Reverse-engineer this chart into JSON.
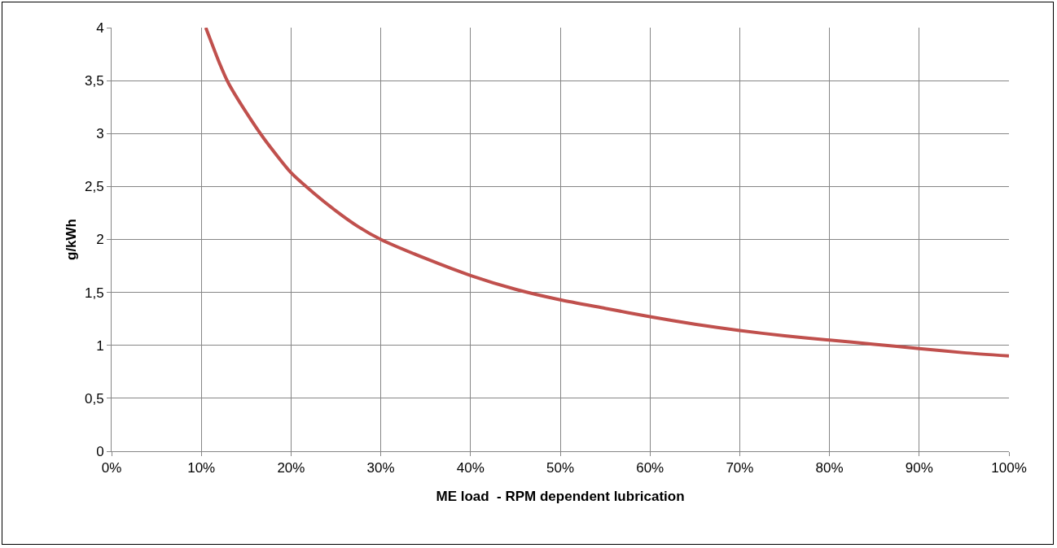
{
  "chart_data": {
    "type": "line",
    "xlabel": "ME load  - RPM dependent lubrication",
    "ylabel": "g/kWh",
    "x": [
      10.5,
      12,
      13,
      15,
      17,
      20,
      22.5,
      25,
      27.5,
      30,
      35,
      40,
      45,
      50,
      55,
      60,
      65,
      70,
      75,
      80,
      85,
      90,
      95,
      100
    ],
    "series": [
      {
        "color": "#c0504d",
        "values": [
          4.0,
          3.67,
          3.48,
          3.2,
          2.95,
          2.63,
          2.44,
          2.27,
          2.12,
          2.0,
          1.82,
          1.66,
          1.53,
          1.43,
          1.35,
          1.27,
          1.2,
          1.14,
          1.09,
          1.05,
          1.01,
          0.97,
          0.93,
          0.9
        ]
      }
    ],
    "xlim": [
      0,
      100
    ],
    "xticks": [
      {
        "value": 0,
        "label": "0%"
      },
      {
        "value": 10,
        "label": "10%"
      },
      {
        "value": 20,
        "label": "20%"
      },
      {
        "value": 30,
        "label": "30%"
      },
      {
        "value": 40,
        "label": "40%"
      },
      {
        "value": 50,
        "label": "50%"
      },
      {
        "value": 60,
        "label": "60%"
      },
      {
        "value": 70,
        "label": "70%"
      },
      {
        "value": 80,
        "label": "80%"
      },
      {
        "value": 90,
        "label": "90%"
      },
      {
        "value": 100,
        "label": "100%"
      }
    ],
    "ylim": [
      0,
      4
    ],
    "yticks": [
      {
        "value": 0,
        "label": "0"
      },
      {
        "value": 0.5,
        "label": "0,5"
      },
      {
        "value": 1,
        "label": "1"
      },
      {
        "value": 1.5,
        "label": "1,5"
      },
      {
        "value": 2,
        "label": "2"
      },
      {
        "value": 2.5,
        "label": "2,5"
      },
      {
        "value": 3,
        "label": "3"
      },
      {
        "value": 3.5,
        "label": "3,5"
      },
      {
        "value": 4,
        "label": "4"
      }
    ],
    "grid": true,
    "marker": "none",
    "line_style": "solid"
  }
}
